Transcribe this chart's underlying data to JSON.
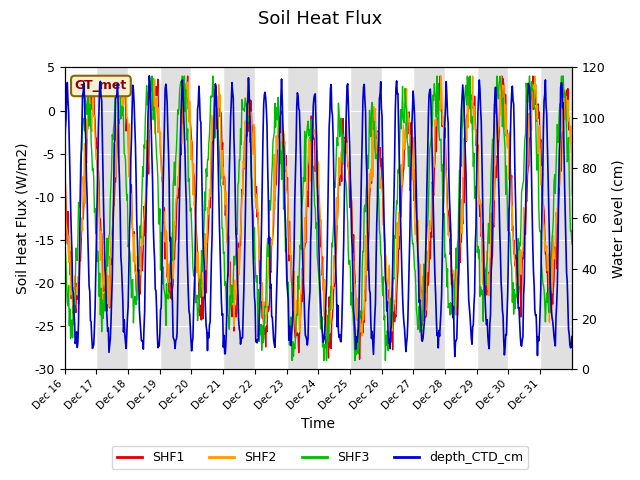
{
  "title": "Soil Heat Flux",
  "ylabel_left": "Soil Heat Flux (W/m2)",
  "ylabel_right": "Water Level (cm)",
  "xlabel": "Time",
  "ylim_left": [
    -30,
    5
  ],
  "ylim_right": [
    0,
    120
  ],
  "annotation": "GT_met",
  "background_color": "#ffffff",
  "colors": {
    "SHF1": "#dd0000",
    "SHF2": "#ff9900",
    "SHF3": "#00bb00",
    "depth_CTD_cm": "#0000cc"
  },
  "legend_labels": [
    "SHF1",
    "SHF2",
    "SHF3",
    "depth_CTD_cm"
  ],
  "x_tick_labels": [
    "Dec 16",
    "Dec 17",
    "Dec 18",
    "Dec 19",
    "Dec 20",
    "Dec 21",
    "Dec 22",
    "Dec 23",
    "Dec 24",
    "Dec 25",
    "Dec 26",
    "Dec 27",
    "Dec 28",
    "Dec 29",
    "Dec 30",
    "Dec 31"
  ],
  "n_days": 16,
  "points_per_day": 48
}
